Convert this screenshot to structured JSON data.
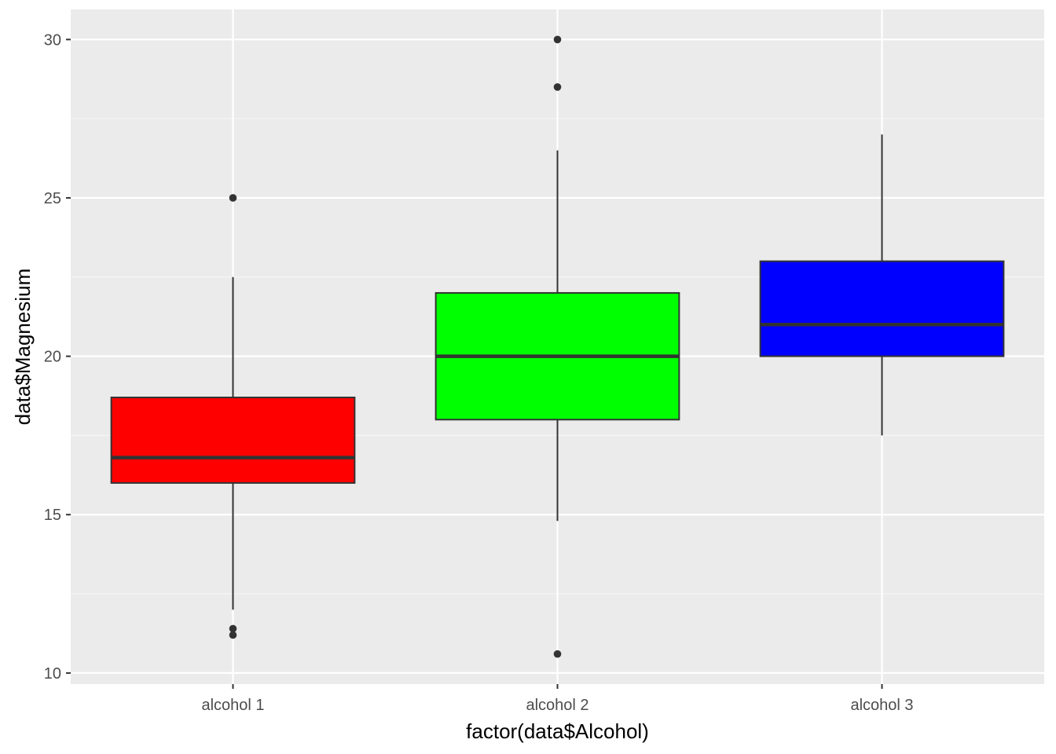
{
  "chart_data": {
    "type": "boxplot",
    "title": "",
    "xlabel": "factor(data$Alcohol)",
    "ylabel": "data$Magnesium",
    "ylim": [
      9.65,
      30.95
    ],
    "y_ticks": [
      10,
      15,
      20,
      25,
      30
    ],
    "y_tick_labels": [
      "10",
      "15",
      "20",
      "25",
      "30"
    ],
    "grid": true,
    "legend": "none",
    "colors": {
      "panel_background": "#ebebeb",
      "grid_major": "#ffffff",
      "grid_minor": "#f7f7f7",
      "box_outline": "#333333",
      "outlier": "#333333"
    },
    "categories": [
      "alcohol 1",
      "alcohol 2",
      "alcohol 3"
    ],
    "boxes": [
      {
        "category": "alcohol 1",
        "fill": "#ff0000",
        "lower_whisker": 12.0,
        "q1": 16.0,
        "median": 16.8,
        "q3": 18.7,
        "upper_whisker": 22.5,
        "outliers": [
          25.0,
          11.4,
          11.2
        ]
      },
      {
        "category": "alcohol 2",
        "fill": "#00ff00",
        "lower_whisker": 14.8,
        "q1": 18.0,
        "median": 20.0,
        "q3": 22.0,
        "upper_whisker": 26.5,
        "outliers": [
          30.0,
          28.5,
          10.6
        ]
      },
      {
        "category": "alcohol 3",
        "fill": "#0000ff",
        "lower_whisker": 17.5,
        "q1": 20.0,
        "median": 21.0,
        "q3": 23.0,
        "upper_whisker": 27.0,
        "outliers": []
      }
    ]
  }
}
